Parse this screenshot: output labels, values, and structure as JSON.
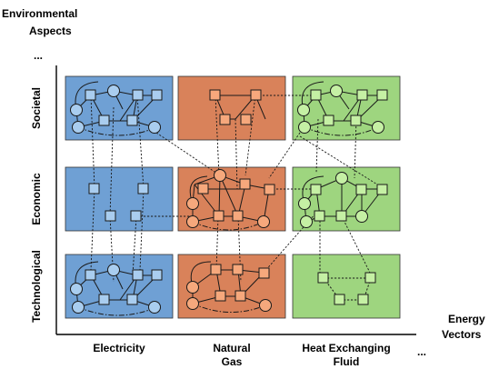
{
  "axes": {
    "y_title_line1": "Environmental",
    "y_title_line2": "Aspects",
    "x_title_line1": "Energy",
    "x_title_line2": "Vectors",
    "y_ellipsis": "...",
    "x_ellipsis": "..."
  },
  "rows": [
    {
      "label": "Societal"
    },
    {
      "label": "Economic"
    },
    {
      "label": "Technological"
    }
  ],
  "columns": [
    {
      "label_line1": "Electricity",
      "label_line2": "",
      "fill": "#6fa0d4",
      "node_fill": "#a9cdef"
    },
    {
      "label_line1": "Natural",
      "label_line2": "Gas",
      "fill": "#d9825a",
      "node_fill": "#f6a87c"
    },
    {
      "label_line1": "Heat Exchanging",
      "label_line2": "Fluid",
      "fill": "#9ed57f",
      "node_fill": "#c5f0a4"
    }
  ],
  "colors": {
    "edge": "#1a1a1a",
    "axis": "#000000",
    "panel_border": "#333333"
  },
  "icons": {
    "node_square": "square",
    "node_circle": "circle"
  }
}
